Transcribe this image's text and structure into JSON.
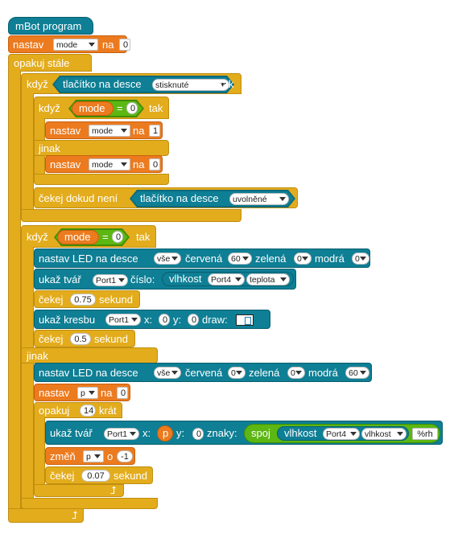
{
  "hat": {
    "label": "mBot program"
  },
  "set_mode": {
    "label": "nastav",
    "var": "mode",
    "to": "na",
    "value": "0"
  },
  "forever": {
    "label": "opakuj stále"
  },
  "if_button": {
    "label": "když",
    "sensor": "tlačítko na desce",
    "state": "stisknuté",
    "then": "tak"
  },
  "if_mode0": {
    "label": "když",
    "var": "mode",
    "op": "=",
    "value": "0",
    "then": "tak"
  },
  "set_mode1": {
    "label": "nastav",
    "var": "mode",
    "to": "na",
    "value": "1"
  },
  "else1": {
    "label": "jinak"
  },
  "set_mode0b": {
    "label": "nastav",
    "var": "mode",
    "to": "na",
    "value": "0"
  },
  "wait_until": {
    "label": "čekej dokud není",
    "sensor": "tlačítko na desce",
    "state": "uvolněné"
  },
  "if_mode0_main": {
    "label": "když",
    "var": "mode",
    "op": "=",
    "value": "0",
    "then": "tak"
  },
  "led1": {
    "label": "nastav LED na desce",
    "which": "vše",
    "red_label": "červená",
    "red": "60",
    "green_label": "zelená",
    "green": "0",
    "blue_label": "modrá",
    "blue": "0"
  },
  "face1": {
    "label": "ukaž tvář",
    "port": "Port1",
    "num_label": "číslo:",
    "sensor": "vlhkost",
    "sport": "Port4",
    "stype": "teplota"
  },
  "wait1": {
    "label": "čekej",
    "value": "0.75",
    "unit": "sekund"
  },
  "draw1": {
    "label": "ukaž kresbu",
    "port": "Port1",
    "x_label": "x:",
    "x": "0",
    "y_label": "y:",
    "y": "0",
    "draw_label": "draw:"
  },
  "wait2": {
    "label": "čekej",
    "value": "0.5",
    "unit": "sekund"
  },
  "else2": {
    "label": "jinak"
  },
  "led2": {
    "label": "nastav LED na desce",
    "which": "vše",
    "red_label": "červená",
    "red": "0",
    "green_label": "zelená",
    "green": "0",
    "blue_label": "modrá",
    "blue": "60"
  },
  "set_p": {
    "label": "nastav",
    "var": "p",
    "to": "na",
    "value": "0"
  },
  "repeat": {
    "label": "opakuj",
    "count": "14",
    "times": "krát"
  },
  "face2": {
    "label": "ukaž tvář",
    "port": "Port1",
    "x_label": "x:",
    "x": "p",
    "y_label": "y:",
    "y": "0",
    "chars_label": "znaky:",
    "join": "spoj",
    "sensor": "vlhkost",
    "sport": "Port4",
    "stype": "vlhkost",
    "suffix": "%rh"
  },
  "change_p": {
    "label": "změň",
    "var": "p",
    "by": "o",
    "value": "-1"
  },
  "wait3": {
    "label": "čekej",
    "value": "0.07",
    "unit": "sekund"
  }
}
